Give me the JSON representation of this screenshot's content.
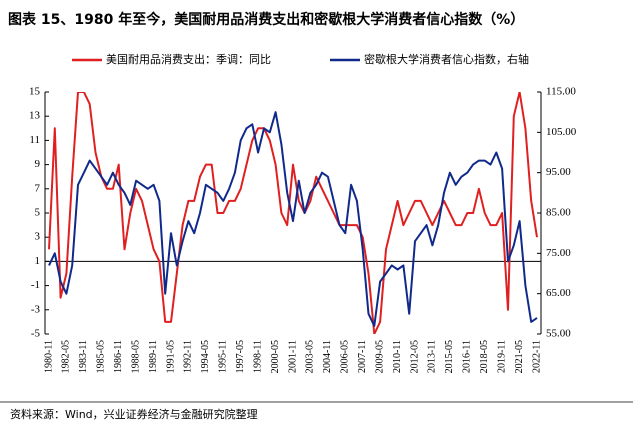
{
  "chart_data": {
    "type": "line",
    "title": "图表 15、1980 年至今，美国耐用品消费支出和密歇根大学消费者信心指数（%）",
    "source": "资料来源：Wind，兴业证券经济与金融研究院整理",
    "x": [
      "1980-11",
      "1981-05",
      "1981-11",
      "1982-05",
      "1982-11",
      "1983-05",
      "1983-11",
      "1984-05",
      "1984-11",
      "1985-05",
      "1985-11",
      "1986-05",
      "1986-11",
      "1987-05",
      "1987-11",
      "1988-05",
      "1988-11",
      "1989-05",
      "1989-11",
      "1990-05",
      "1990-11",
      "1991-05",
      "1991-11",
      "1992-05",
      "1992-11",
      "1993-05",
      "1993-11",
      "1994-05",
      "1994-11",
      "1995-05",
      "1995-11",
      "1996-05",
      "1996-11",
      "1997-05",
      "1997-11",
      "1998-05",
      "1998-11",
      "1999-05",
      "1999-11",
      "2000-05",
      "2000-11",
      "2001-05",
      "2001-11",
      "2002-05",
      "2002-11",
      "2003-05",
      "2003-11",
      "2004-05",
      "2004-11",
      "2005-05",
      "2005-11",
      "2006-05",
      "2006-11",
      "2007-05",
      "2007-11",
      "2008-05",
      "2008-11",
      "2009-05",
      "2009-11",
      "2010-05",
      "2010-11",
      "2011-05",
      "2011-11",
      "2012-05",
      "2012-11",
      "2013-05",
      "2013-11",
      "2014-05",
      "2014-11",
      "2015-05",
      "2015-11",
      "2016-05",
      "2016-11",
      "2017-05",
      "2017-11",
      "2018-05",
      "2018-11",
      "2019-05",
      "2019-11",
      "2020-05",
      "2020-11",
      "2021-05",
      "2021-11",
      "2022-05",
      "2022-11"
    ],
    "xticks": [
      "1980-11",
      "1982-05",
      "1983-11",
      "1985-05",
      "1986-11",
      "1988-05",
      "1989-11",
      "1991-05",
      "1992-11",
      "1994-05",
      "1995-11",
      "1997-05",
      "1998-11",
      "2000-05",
      "2001-11",
      "2003-05",
      "2004-11",
      "2006-05",
      "2007-11",
      "2009-05",
      "2010-11",
      "2012-05",
      "2013-11",
      "2015-05",
      "2016-11",
      "2018-05",
      "2019-11",
      "2021-05",
      "2022-11"
    ],
    "series": [
      {
        "name": "美国耐用品消费支出：季调：同比",
        "color": "#e02020",
        "axis": "y",
        "values": [
          2,
          12,
          -2,
          0,
          8,
          15,
          15,
          14,
          10,
          8,
          7,
          7,
          9,
          2,
          5,
          7,
          6,
          4,
          2,
          1,
          -4,
          -4,
          0,
          4,
          6,
          6,
          8,
          9,
          9,
          5,
          5,
          6,
          6,
          7,
          9,
          11,
          12,
          12,
          11,
          9,
          5,
          4,
          9,
          6,
          5,
          6,
          8,
          7,
          6,
          5,
          4,
          4,
          4,
          4,
          3,
          0,
          -5,
          -4,
          2,
          4,
          6,
          4,
          5,
          6,
          6,
          5,
          4,
          5,
          6,
          5,
          4,
          4,
          5,
          5,
          7,
          5,
          4,
          4,
          5,
          -3,
          13,
          15,
          12,
          6,
          3
        ]
      },
      {
        "name": "密歇根大学消费者信心指数，右轴",
        "color": "#102a8c",
        "axis": "y2",
        "values": [
          72,
          75,
          68,
          65,
          72,
          92,
          95,
          98,
          96,
          94,
          92,
          95,
          92,
          90,
          87,
          93,
          92,
          91,
          92,
          88,
          65,
          80,
          72,
          78,
          83,
          80,
          85,
          92,
          91,
          90,
          88,
          91,
          95,
          103,
          106,
          107,
          100,
          106,
          105,
          110,
          102,
          90,
          83,
          93,
          85,
          90,
          92,
          95,
          94,
          88,
          82,
          80,
          92,
          88,
          76,
          60,
          57,
          68,
          70,
          72,
          71,
          72,
          60,
          78,
          80,
          82,
          77,
          82,
          90,
          95,
          92,
          94,
          95,
          97,
          98,
          98,
          97,
          100,
          96,
          73,
          77,
          83,
          67,
          58,
          59
        ]
      }
    ],
    "ylim": [
      -5,
      15
    ],
    "yticks": [
      -5,
      -3,
      -1,
      1,
      3,
      5,
      7,
      9,
      11,
      13,
      15
    ],
    "y2lim": [
      55,
      115
    ],
    "y2ticks": [
      {
        "value": 55,
        "label": "55.00"
      },
      {
        "value": 65,
        "label": "65.00"
      },
      {
        "value": 75,
        "label": "75.00"
      },
      {
        "value": 85,
        "label": "85.00"
      },
      {
        "value": 95,
        "label": "95.00"
      },
      {
        "value": 105,
        "label": "105.00"
      },
      {
        "value": 115,
        "label": "115.00"
      }
    ],
    "hline": 1,
    "legend": "top"
  }
}
